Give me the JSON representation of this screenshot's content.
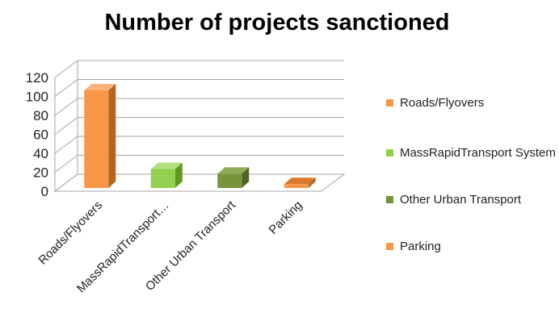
{
  "chart_data": {
    "type": "bar",
    "title": "Number of projects sanctioned",
    "categories": [
      "Roads/Flyovers",
      "MassRapidTransport System",
      "Other Urban Transport",
      "Parking"
    ],
    "category_tick_labels": [
      "Roads/Flyovers",
      "MassRapidTransport…",
      "Other Urban Transport",
      "Parking"
    ],
    "values": [
      103,
      20,
      15,
      4
    ],
    "ylim": [
      0,
      120
    ],
    "yticks": [
      0,
      20,
      40,
      60,
      80,
      100,
      120
    ],
    "grid": true,
    "legend": "right",
    "three_d": true,
    "legend_entries": [
      {
        "label": "Roads/Flyovers",
        "color": "#f79646"
      },
      {
        "label": "MassRapidTransport System",
        "color": "#92d050"
      },
      {
        "label": "Other Urban Transport",
        "color": "#77933c"
      },
      {
        "label": "Parking",
        "color": "#f79646"
      }
    ],
    "colors": [
      "#f79646",
      "#92d050",
      "#77933c",
      "#f79646"
    ],
    "side_colors": [
      "#b5651d",
      "#5f9a20",
      "#4f6228",
      "#b5651d"
    ],
    "top_colors": [
      "#fab27b",
      "#b3e07f",
      "#8fab55",
      "#d9792e"
    ]
  }
}
